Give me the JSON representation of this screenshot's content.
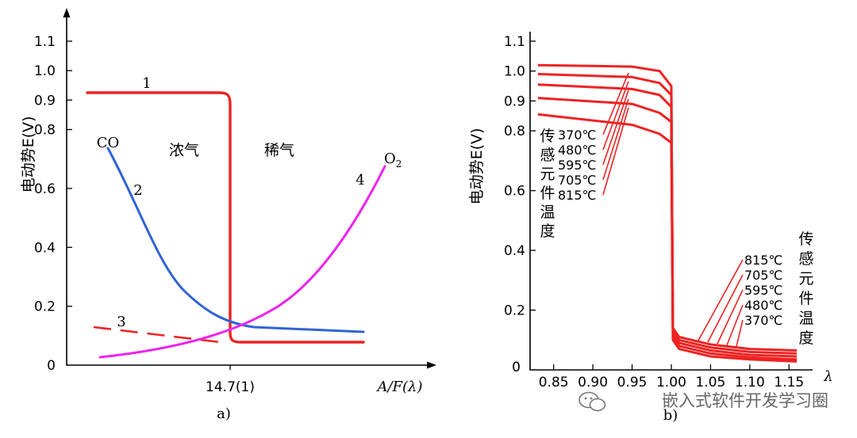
{
  "chart_data": [
    {
      "type": "line",
      "caption": "a)",
      "ylabel": "电动势E(V)",
      "xlabel": "A/F(λ)",
      "y_ticks": [
        "0",
        "0.2",
        "0.4",
        "0.6",
        "0.8",
        "0.9",
        "1.0",
        "1.1"
      ],
      "y_tick_values": [
        0,
        0.2,
        0.4,
        0.6,
        0.8,
        0.9,
        1.0,
        1.1
      ],
      "ylim": [
        0,
        1.15
      ],
      "x_ticks": [
        "14.7(1)"
      ],
      "region_labels": {
        "rich": "浓气",
        "lean": "稀气"
      },
      "curve_labels": {
        "c1": "1",
        "c2": "2",
        "c3": "3",
        "c4": "4",
        "co": "CO",
        "o2": "O",
        "o2_sub": "2"
      },
      "colors": {
        "sensor": "#ee2222",
        "co": "#2f63d6",
        "o2": "#ee22ee"
      }
    },
    {
      "type": "line",
      "caption": "b)",
      "ylabel": "电动势E(V)",
      "xlabel": "λ",
      "x_ticks": [
        "0.85",
        "0.90",
        "0.95",
        "1.00",
        "1.05",
        "1.10",
        "1.15"
      ],
      "x_tick_values": [
        0.85,
        0.9,
        0.95,
        1.0,
        1.05,
        1.1,
        1.15
      ],
      "xlim": [
        0.82,
        1.18
      ],
      "y_ticks": [
        "0.2",
        "0.4",
        "0.6",
        "0.8",
        "0.9",
        "1.0",
        "1.1"
      ],
      "y_tick_values": [
        0.2,
        0.4,
        0.6,
        0.8,
        0.9,
        1.0,
        1.1
      ],
      "y_zero_label": "0",
      "ylim": [
        0,
        1.15
      ],
      "left_temp_title": [
        "传",
        "感",
        "元",
        "件",
        "温",
        "度"
      ],
      "right_temp_title": [
        "传",
        "感",
        "元",
        "件",
        "温",
        "度"
      ],
      "left_temps": [
        "370℃",
        "480℃",
        "595℃",
        "705℃",
        "815℃"
      ],
      "right_temps": [
        "815℃",
        "705℃",
        "595℃",
        "480℃",
        "370℃"
      ],
      "series": [
        {
          "temperature": "370℃",
          "x": [
            0.83,
            0.95,
            0.985,
            1.0,
            1.002,
            1.01,
            1.05,
            1.1,
            1.16
          ],
          "y": [
            1.02,
            1.015,
            1.0,
            0.95,
            0.14,
            0.11,
            0.085,
            0.07,
            0.065
          ]
        },
        {
          "temperature": "480℃",
          "x": [
            0.83,
            0.95,
            0.985,
            1.0,
            1.002,
            1.01,
            1.05,
            1.1,
            1.16
          ],
          "y": [
            0.99,
            0.98,
            0.96,
            0.92,
            0.13,
            0.1,
            0.075,
            0.06,
            0.055
          ]
        },
        {
          "temperature": "595℃",
          "x": [
            0.83,
            0.95,
            0.985,
            1.0,
            1.002,
            1.01,
            1.05,
            1.1,
            1.16
          ],
          "y": [
            0.955,
            0.94,
            0.92,
            0.88,
            0.12,
            0.09,
            0.065,
            0.05,
            0.045
          ]
        },
        {
          "temperature": "705℃",
          "x": [
            0.83,
            0.95,
            0.985,
            1.0,
            1.002,
            1.01,
            1.05,
            1.1,
            1.16
          ],
          "y": [
            0.91,
            0.89,
            0.86,
            0.83,
            0.11,
            0.08,
            0.055,
            0.042,
            0.035
          ]
        },
        {
          "temperature": "815℃",
          "x": [
            0.83,
            0.95,
            0.985,
            1.0,
            1.002,
            1.01,
            1.05,
            1.1,
            1.16
          ],
          "y": [
            0.855,
            0.82,
            0.79,
            0.76,
            0.1,
            0.07,
            0.045,
            0.035,
            0.028
          ]
        }
      ],
      "color": "#ee2222"
    }
  ],
  "watermark": "嵌入式软件开发学习圈"
}
